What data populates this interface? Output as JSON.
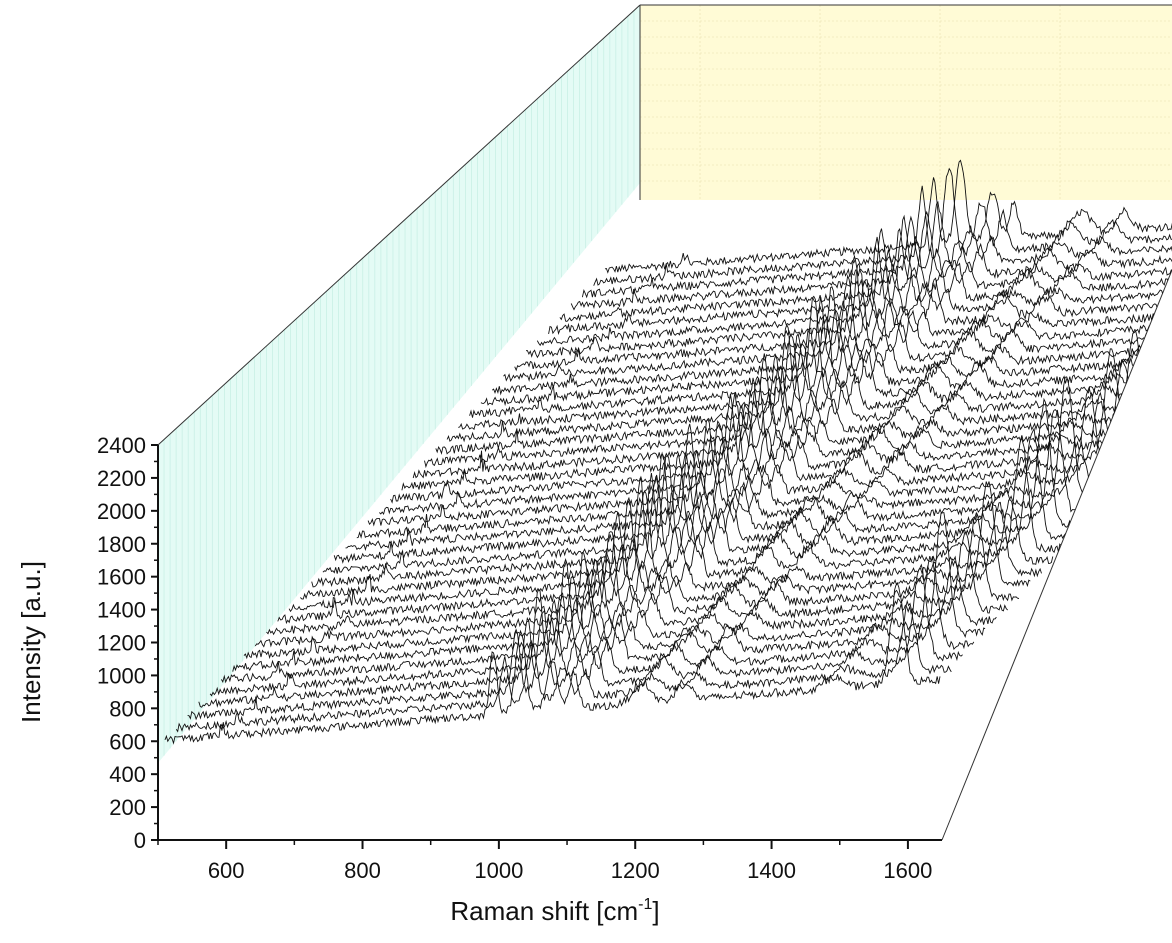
{
  "chart_data": {
    "type": "line",
    "subtype": "3d-waterfall",
    "title": "",
    "xlabel": "Raman shift [cm",
    "xlabel_sup": "-1",
    "xlabel_suffix": "]",
    "ylabel": "Intensity [a.u.]",
    "xlim": [
      500,
      1650
    ],
    "ylim": [
      0,
      2400
    ],
    "x_ticks": [
      600,
      800,
      1000,
      1200,
      1400,
      1600
    ],
    "x_tick_labels": [
      "600",
      "800",
      "1000",
      "1200",
      "1400",
      "1600"
    ],
    "y_ticks": [
      0,
      200,
      400,
      600,
      800,
      1000,
      1200,
      1400,
      1600,
      1800,
      2000,
      2200,
      2400
    ],
    "y_tick_labels": [
      "0",
      "200",
      "400",
      "600",
      "800",
      "1000",
      "1200",
      "1400",
      "1600",
      "1800",
      "2000",
      "2200",
      "2400"
    ],
    "spectra_count": 40,
    "baseline_range": [
      600,
      1100
    ],
    "characteristic_peaks": [
      1022,
      1060,
      1105,
      1135,
      1590
    ],
    "back_wall_color": "#fffbd6",
    "side_wall_color": "#e4fbf5",
    "line_color": "#111111",
    "grid": true
  }
}
